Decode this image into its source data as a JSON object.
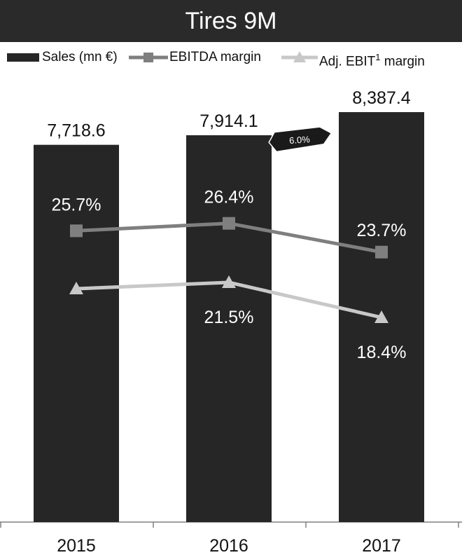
{
  "title": "Tires 9M",
  "colors": {
    "bar": "#262626",
    "ebitda": "#7f7f7f",
    "ebit": "#c8c8c8",
    "title_bg": "#2a2a2a"
  },
  "legend": {
    "sales": "Sales (mn €)",
    "ebitda": "EBITDA margin",
    "ebit_prefix": "Adj. EBIT",
    "ebit_sup": "1",
    "ebit_suffix": " margin"
  },
  "callout": "6.0%",
  "chart_data": {
    "type": "bar",
    "categories": [
      "2015",
      "2016",
      "2017"
    ],
    "series": [
      {
        "name": "Sales (mn €)",
        "type": "bar",
        "values": [
          7718.6,
          7914.1,
          8387.4
        ],
        "labels": [
          "7,718.6",
          "7,914.1",
          "8,387.4"
        ]
      },
      {
        "name": "EBITDA margin",
        "type": "line",
        "values": [
          25.7,
          26.4,
          23.7
        ],
        "labels": [
          "25.7%",
          "26.4%",
          "23.7%"
        ]
      },
      {
        "name": "Adj. EBIT1 margin",
        "type": "line",
        "values": [
          21.5,
          21.5,
          18.4
        ],
        "labels": [
          "",
          "21.5%",
          "18.4%"
        ]
      }
    ],
    "legend_position": "top",
    "grid": false
  }
}
